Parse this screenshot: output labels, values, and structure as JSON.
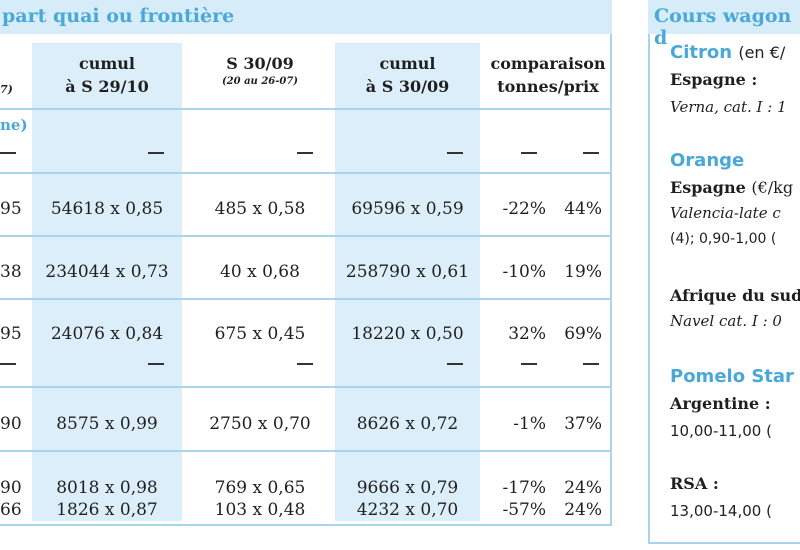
{
  "header_left": "part quai ou frontière",
  "header_right": "Cours wagon d",
  "columns": [
    {
      "line1": "",
      "line2": "7)",
      "sub": ""
    },
    {
      "line1": "cumul",
      "line2": "à S 29/10",
      "sub": ""
    },
    {
      "line1": "S 30/09",
      "line2": "",
      "sub": "(20 au 26-07)"
    },
    {
      "line1": "cumul",
      "line2": "à S 30/09",
      "sub": ""
    },
    {
      "line1": "comparaison",
      "line2": "tonnes/prix",
      "sub": ""
    }
  ],
  "section_label": "ne)",
  "rows": [
    {
      "c0": "95",
      "c1": "54618 x 0,85",
      "c2": "485 x 0,58",
      "c3": "69596 x 0,59",
      "pct_t": "-22%",
      "pct_p": "44%"
    },
    {
      "c0": "38",
      "c1": "234044 x 0,73",
      "c2": "40 x 0,68",
      "c3": "258790 x 0,61",
      "pct_t": "-10%",
      "pct_p": "19%"
    },
    {
      "c0": "95",
      "c1": "24076 x 0,84",
      "c2": "675 x 0,45",
      "c3": "18220 x 0,50",
      "pct_t": "32%",
      "pct_p": "69%"
    },
    {
      "c0": "90",
      "c1": "8575 x 0,99",
      "c2": "2750 x 0,70",
      "c3": "8626 x 0,72",
      "pct_t": "-1%",
      "pct_p": "37%"
    },
    {
      "c0": "90",
      "c1": "8018 x 0,98",
      "c2": "769 x 0,65",
      "c3": "9666 x 0,79",
      "pct_t": "-17%",
      "pct_p": "24%"
    },
    {
      "c0": "66",
      "c1": "1826 x 0,87",
      "c2": "103 x 0,48",
      "c3": "4232 x 0,70",
      "pct_t": "-57%",
      "pct_p": "24%"
    }
  ],
  "right_panel": {
    "citron_title": "Citron",
    "citron_unit": "(en €/",
    "espagne1": "Espagne :",
    "verna": "Verna, cat. I : 1",
    "orange_title": "Orange",
    "espagne2": "Espagne",
    "espagne2_unit": "(€/kg",
    "valencia": "Valencia-late  c",
    "valencia_price": "(4); 0,90-1,00 (",
    "afrique": "Afrique du sud",
    "navel": "Navel cat. I : 0",
    "pomelo_title": "Pomelo Star",
    "argentine": "Argentine :",
    "argentine_price": "10,00-11,00 (",
    "rsa": "RSA :",
    "rsa_price": "13,00-14,00 ("
  }
}
